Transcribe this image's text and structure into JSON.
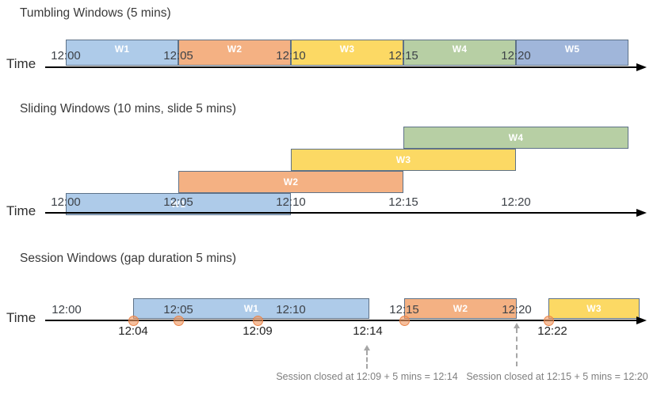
{
  "figure": {
    "sections": [
      {
        "key": "tumbling",
        "title": "Tumbling Windows (5 mins)",
        "time_axis_label": "Time",
        "ticks": [
          "12:00",
          "12:05",
          "12:10",
          "12:15",
          "12:20"
        ],
        "windows": [
          {
            "label": "W1",
            "color": "blue",
            "start": "12:00",
            "end": "12:05"
          },
          {
            "label": "W2",
            "color": "orange",
            "start": "12:05",
            "end": "12:10"
          },
          {
            "label": "W3",
            "color": "yellow",
            "start": "12:10",
            "end": "12:15"
          },
          {
            "label": "W4",
            "color": "green",
            "start": "12:15",
            "end": "12:20"
          },
          {
            "label": "W5",
            "color": "periwinkle",
            "start": "12:20",
            "end": "12:25"
          }
        ]
      },
      {
        "key": "sliding",
        "title": "Sliding Windows (10 mins, slide 5 mins)",
        "time_axis_label": "Time",
        "ticks": [
          "12:00",
          "12:05",
          "12:10",
          "12:15",
          "12:20"
        ],
        "windows": [
          {
            "label": "W1",
            "color": "blue",
            "start": "12:00",
            "end": "12:10"
          },
          {
            "label": "W2",
            "color": "orange",
            "start": "12:05",
            "end": "12:15"
          },
          {
            "label": "W3",
            "color": "yellow",
            "start": "12:10",
            "end": "12:20"
          },
          {
            "label": "W4",
            "color": "green",
            "start": "12:15",
            "end": "12:25"
          }
        ]
      },
      {
        "key": "session",
        "title": "Session Windows (gap duration 5 mins)",
        "time_axis_label": "Time",
        "ticks": [
          "12:00",
          "12:05",
          "12:10",
          "12:15",
          "12:20"
        ],
        "windows": [
          {
            "label": "W1",
            "color": "blue",
            "start": "12:04",
            "end": "12:14"
          },
          {
            "label": "W2",
            "color": "orange",
            "start": "12:15",
            "end": "12:20"
          },
          {
            "label": "W3",
            "color": "yellow",
            "start": "12:22",
            "end": ""
          }
        ],
        "event_dots": [
          "12:04",
          "12:05",
          "12:09",
          "12:15",
          "12:22"
        ],
        "below_axis_labels": [
          "12:04",
          "12:09",
          "12:14",
          "12:22"
        ],
        "annotations": [
          "Session closed at 12:09 + 5 mins = 12:14",
          "Session closed at 12:15 + 5 mins = 12:20"
        ]
      }
    ]
  },
  "palette": {
    "blue": "#aecbe9",
    "orange": "#f4b183",
    "yellow": "#fcd964",
    "green": "#b7cfa4",
    "periwinkle": "#a0b6da",
    "bar_border": "#5e7288",
    "axis": "#000000",
    "event_dot": "#ed7d31",
    "annotation_gray": "#7f7f7f"
  }
}
